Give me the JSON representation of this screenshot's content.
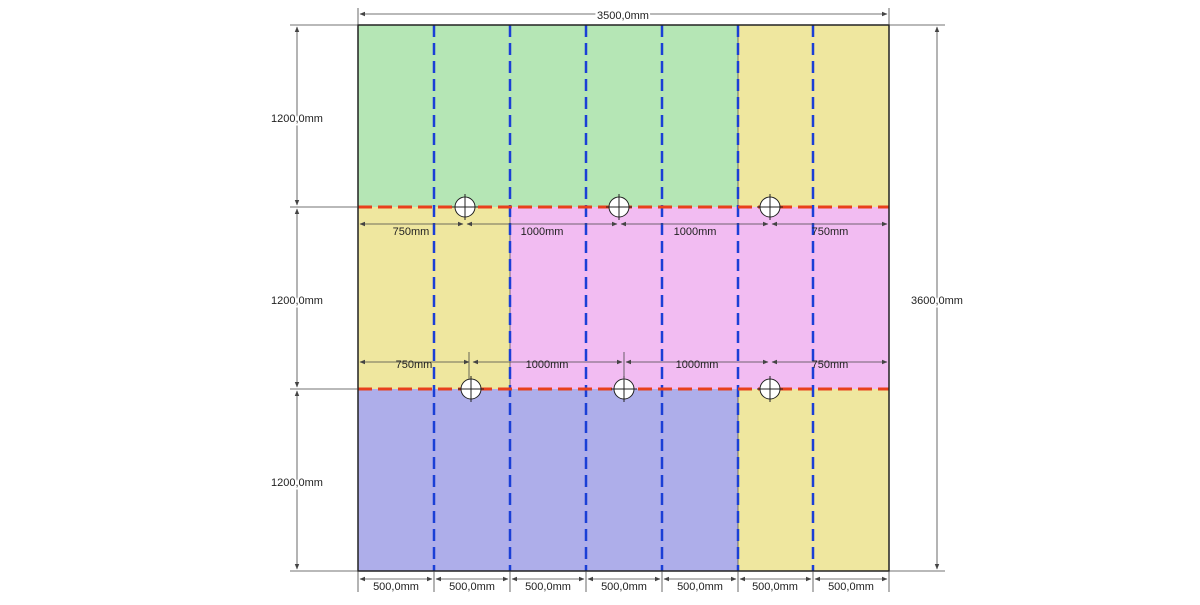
{
  "drawing": {
    "total_width_mm": 3500,
    "total_height_mm": 3600,
    "overall_width_label": "3500,0mm",
    "overall_height_label": "3600,0mm",
    "row_height_labels": [
      "1200,0mm",
      "1200,0mm",
      "1200,0mm"
    ],
    "column_labels": [
      "500,0mm",
      "500,0mm",
      "500,0mm",
      "500,0mm",
      "500,0mm",
      "500,0mm",
      "500,0mm"
    ],
    "top_seam_dimensions": [
      "750mm",
      "1000mm",
      "1000mm",
      "750mm"
    ],
    "bottom_seam_dimensions": [
      "750mm",
      "1000mm",
      "1000mm",
      "750mm"
    ]
  },
  "colors": {
    "green": "#b5e6b5",
    "yellow": "#efe79f",
    "pink": "#f2bcf2",
    "blue": "#aeaeea",
    "dash_blue": "#1a3fd6",
    "dash_red": "#e8401c",
    "outline": "#222222",
    "dimension": "#444444"
  }
}
